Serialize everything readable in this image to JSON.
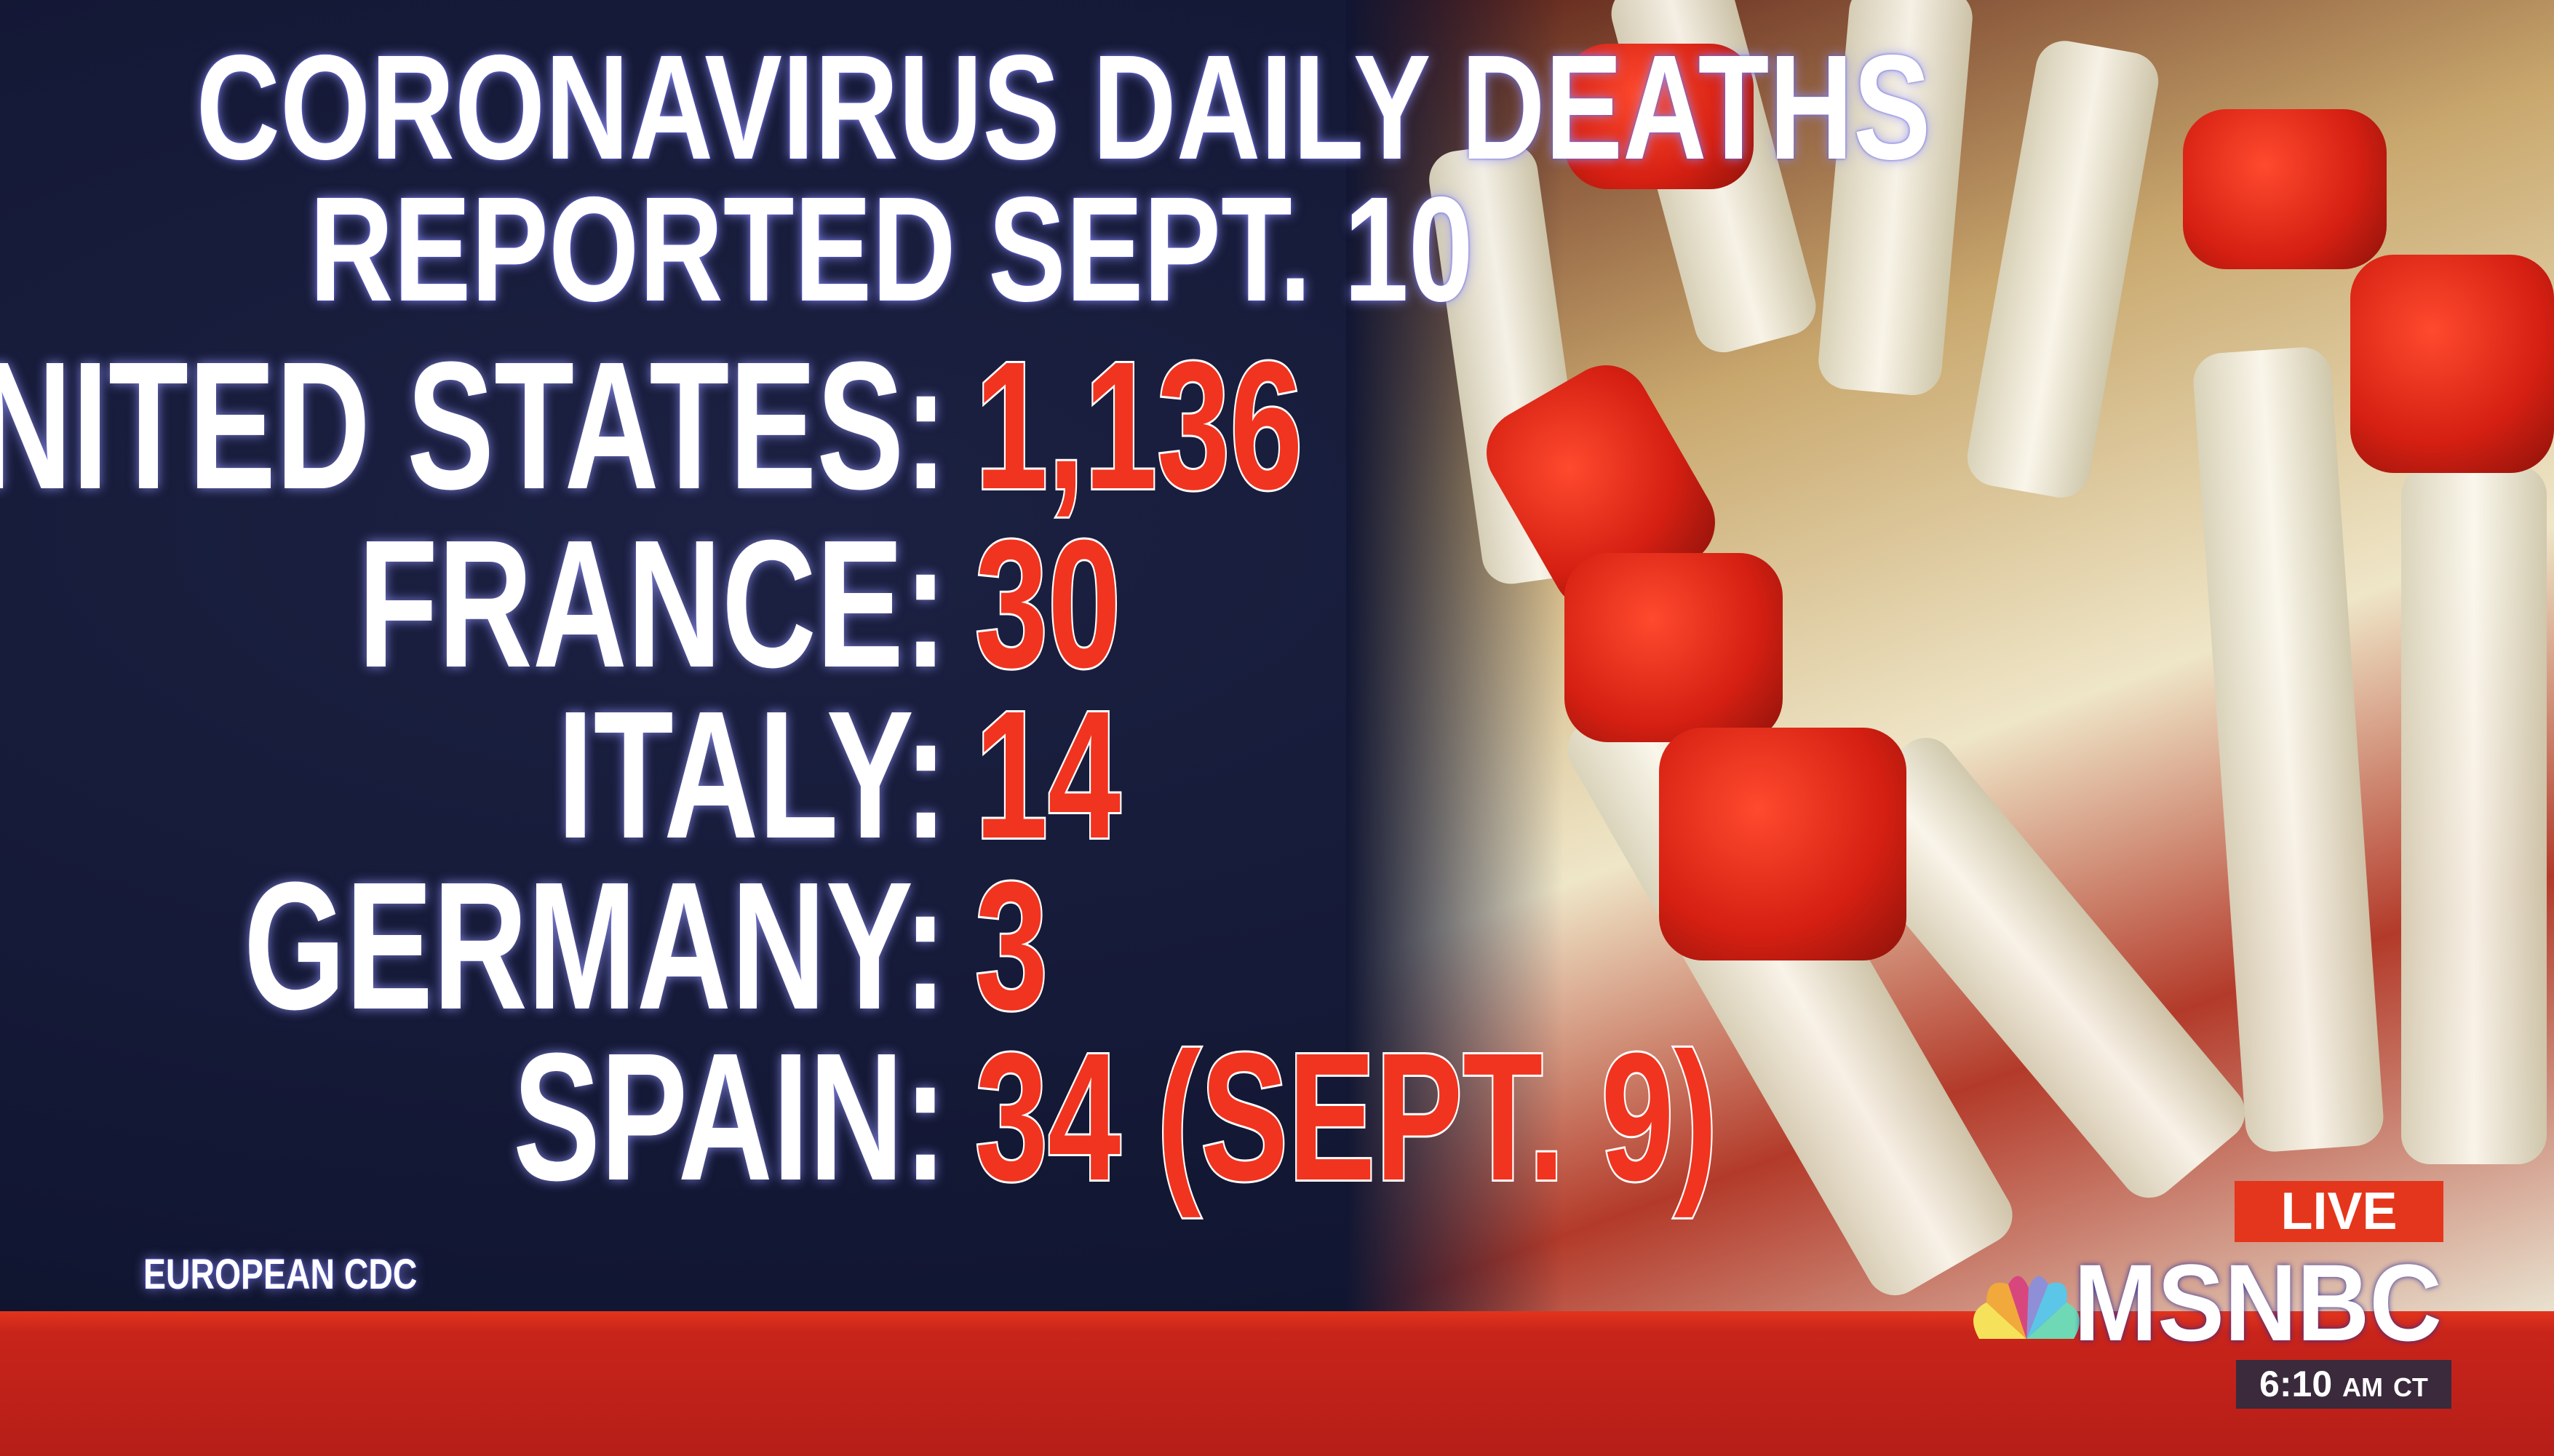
{
  "title": {
    "line1": "CORONAVIRUS DAILY DEATHS",
    "line2": "REPORTED SEPT. 10"
  },
  "rows": [
    {
      "country": "UNITED STATES:",
      "deaths": "1,136"
    },
    {
      "country": "FRANCE:",
      "deaths": "30"
    },
    {
      "country": "ITALY:",
      "deaths": "14"
    },
    {
      "country": "GERMANY:",
      "deaths": "3"
    },
    {
      "country": "SPAIN:",
      "deaths": "34 (SEPT. 9)"
    }
  ],
  "source": "EUROPEAN CDC",
  "network": {
    "live": "LIVE",
    "logo": "MSNBC",
    "time": "6:10",
    "ampm": "AM",
    "zone": "CT"
  },
  "colors": {
    "background": "#141a33",
    "value_red": "#f0341f",
    "bar_red": "#c8241a"
  }
}
